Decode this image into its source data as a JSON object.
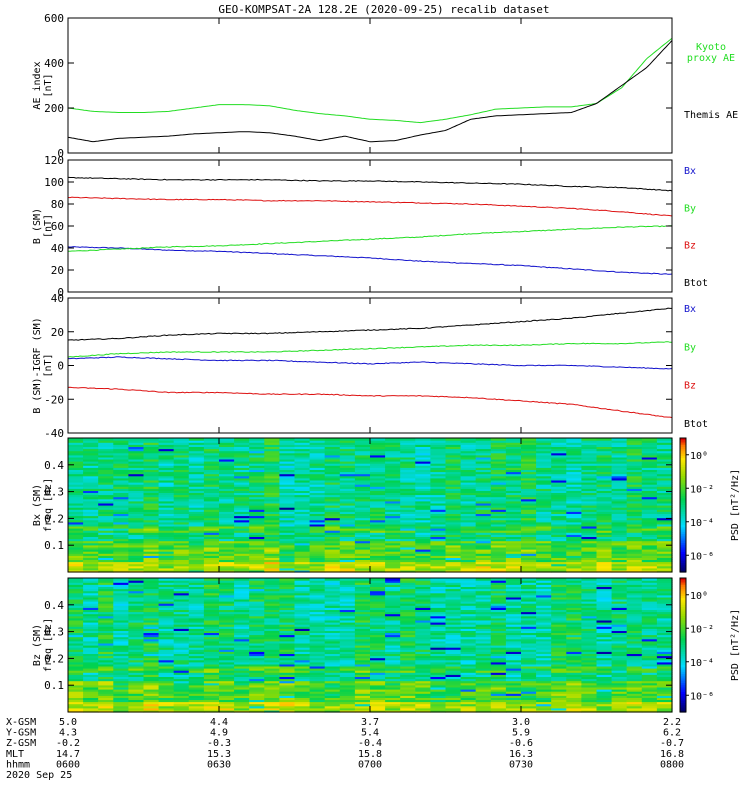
{
  "title": "GEO-KOMPSAT-2A 128.2E (2020-09-25) recalib dataset",
  "colors": {
    "black": "#000000",
    "green": "#22dd22",
    "red": "#dd1111",
    "blue": "#1111cc"
  },
  "chart_data": [
    {
      "type": "line",
      "ylabel_lines": [
        "AE index",
        "[nT]"
      ],
      "ylim": [
        0,
        600
      ],
      "yticks": [
        "0",
        "200",
        "400",
        "600"
      ],
      "xlim": [
        0,
        120
      ],
      "x": [
        0,
        5,
        10,
        15,
        20,
        25,
        30,
        35,
        40,
        45,
        50,
        55,
        60,
        65,
        70,
        75,
        80,
        85,
        90,
        95,
        100,
        105,
        110,
        115,
        120
      ],
      "series": [
        {
          "name": "Kyoto proxy AE",
          "label_lines": [
            "Kyoto",
            "proxy AE"
          ],
          "color": "#22dd22",
          "values": [
            200,
            185,
            180,
            180,
            185,
            200,
            215,
            215,
            210,
            190,
            175,
            165,
            150,
            145,
            135,
            150,
            170,
            195,
            200,
            205,
            205,
            220,
            290,
            420,
            510
          ]
        },
        {
          "name": "Themis AE",
          "label_lines": [
            "Themis AE"
          ],
          "color": "#000000",
          "values": [
            70,
            50,
            65,
            70,
            75,
            85,
            90,
            95,
            90,
            75,
            55,
            75,
            50,
            55,
            80,
            100,
            150,
            165,
            170,
            175,
            180,
            220,
            300,
            380,
            500
          ]
        }
      ]
    },
    {
      "type": "line",
      "ylabel_lines": [
        "B (SM)",
        "[nT]"
      ],
      "ylim": [
        0,
        120
      ],
      "yticks": [
        "0",
        "20",
        "40",
        "60",
        "80",
        "100",
        "120"
      ],
      "xlim": [
        0,
        120
      ],
      "x": [
        0,
        10,
        20,
        30,
        40,
        50,
        60,
        70,
        80,
        90,
        100,
        110,
        120
      ],
      "series": [
        {
          "name": "Bx",
          "label_lines": [
            "Bx"
          ],
          "color": "#1111cc",
          "values": [
            41,
            40,
            38,
            37,
            35,
            33,
            31,
            28,
            26,
            24,
            21,
            18,
            16
          ]
        },
        {
          "name": "By",
          "label_lines": [
            "By"
          ],
          "color": "#22dd22",
          "values": [
            37,
            39,
            41,
            42,
            44,
            46,
            48,
            50,
            53,
            55,
            57,
            59,
            60
          ]
        },
        {
          "name": "Bz",
          "label_lines": [
            "Bz"
          ],
          "color": "#dd1111",
          "values": [
            86,
            85,
            84,
            84,
            83,
            83,
            82,
            81,
            80,
            78,
            76,
            73,
            69
          ]
        },
        {
          "name": "Btot",
          "label_lines": [
            "Btot"
          ],
          "color": "#000000",
          "values": [
            104,
            103,
            102,
            102,
            102,
            101,
            101,
            100,
            99,
            98,
            96,
            95,
            92
          ]
        }
      ]
    },
    {
      "type": "line",
      "ylabel_lines": [
        "B (SM)-IGRF (SM)",
        "[nT]"
      ],
      "ylim": [
        -40,
        40
      ],
      "yticks": [
        "-40",
        "-20",
        "0",
        "20",
        "40"
      ],
      "xlim": [
        0,
        120
      ],
      "x": [
        0,
        10,
        20,
        30,
        40,
        50,
        60,
        70,
        80,
        90,
        100,
        110,
        120
      ],
      "series": [
        {
          "name": "Bx",
          "label_lines": [
            "Bx"
          ],
          "color": "#1111cc",
          "values": [
            4,
            5,
            4,
            3,
            3,
            2,
            1,
            2,
            1,
            0,
            0,
            -1,
            -2
          ]
        },
        {
          "name": "By",
          "label_lines": [
            "By"
          ],
          "color": "#22dd22",
          "values": [
            5,
            7,
            8,
            8,
            8,
            9,
            10,
            11,
            12,
            12,
            13,
            13,
            14
          ]
        },
        {
          "name": "Bz",
          "label_lines": [
            "Bz"
          ],
          "color": "#dd1111",
          "values": [
            -13,
            -14,
            -16,
            -16,
            -17,
            -17,
            -18,
            -18,
            -19,
            -21,
            -23,
            -27,
            -31
          ]
        },
        {
          "name": "Btot",
          "label_lines": [
            "Btot"
          ],
          "color": "#000000",
          "values": [
            15,
            16,
            18,
            19,
            19,
            20,
            21,
            22,
            24,
            26,
            28,
            31,
            34
          ]
        }
      ]
    },
    {
      "type": "heatmap",
      "ylabel_lines": [
        "Bx (SM)",
        "freq [Hz]"
      ],
      "ylim": [
        0,
        0.5
      ],
      "yticks": [
        "0.1",
        "0.2",
        "0.3",
        "0.4"
      ],
      "colorbar_label": "PSD [nT²/Hz]",
      "colorbar_ticks": [
        "10⁰",
        "10⁻²",
        "10⁻⁴",
        "10⁻⁶"
      ],
      "psd_range_log10": [
        -7,
        1
      ]
    },
    {
      "type": "heatmap",
      "ylabel_lines": [
        "Bz (SM)",
        "freq [Hz]"
      ],
      "ylim": [
        0,
        0.5
      ],
      "yticks": [
        "0.1",
        "0.2",
        "0.3",
        "0.4"
      ],
      "colorbar_label": "PSD [nT²/Hz]",
      "colorbar_ticks": [
        "10⁰",
        "10⁻²",
        "10⁻⁴",
        "10⁻⁶"
      ],
      "psd_range_log10": [
        -7,
        1
      ]
    }
  ],
  "ephemeris": {
    "rows": [
      {
        "label": "X-GSM",
        "values": [
          "5.0",
          "4.4",
          "3.7",
          "3.0",
          "2.2"
        ]
      },
      {
        "label": "Y-GSM",
        "values": [
          "4.3",
          "4.9",
          "5.4",
          "5.9",
          "6.2"
        ]
      },
      {
        "label": "Z-GSM",
        "values": [
          "-0.2",
          "-0.3",
          "-0.4",
          "-0.6",
          "-0.7"
        ]
      },
      {
        "label": "MLT",
        "values": [
          "14.7",
          "15.3",
          "15.8",
          "16.3",
          "16.8"
        ]
      },
      {
        "label": "hhmm",
        "values": [
          "0600",
          "0630",
          "0700",
          "0730",
          "0800"
        ]
      }
    ],
    "date": "2020 Sep 25"
  }
}
